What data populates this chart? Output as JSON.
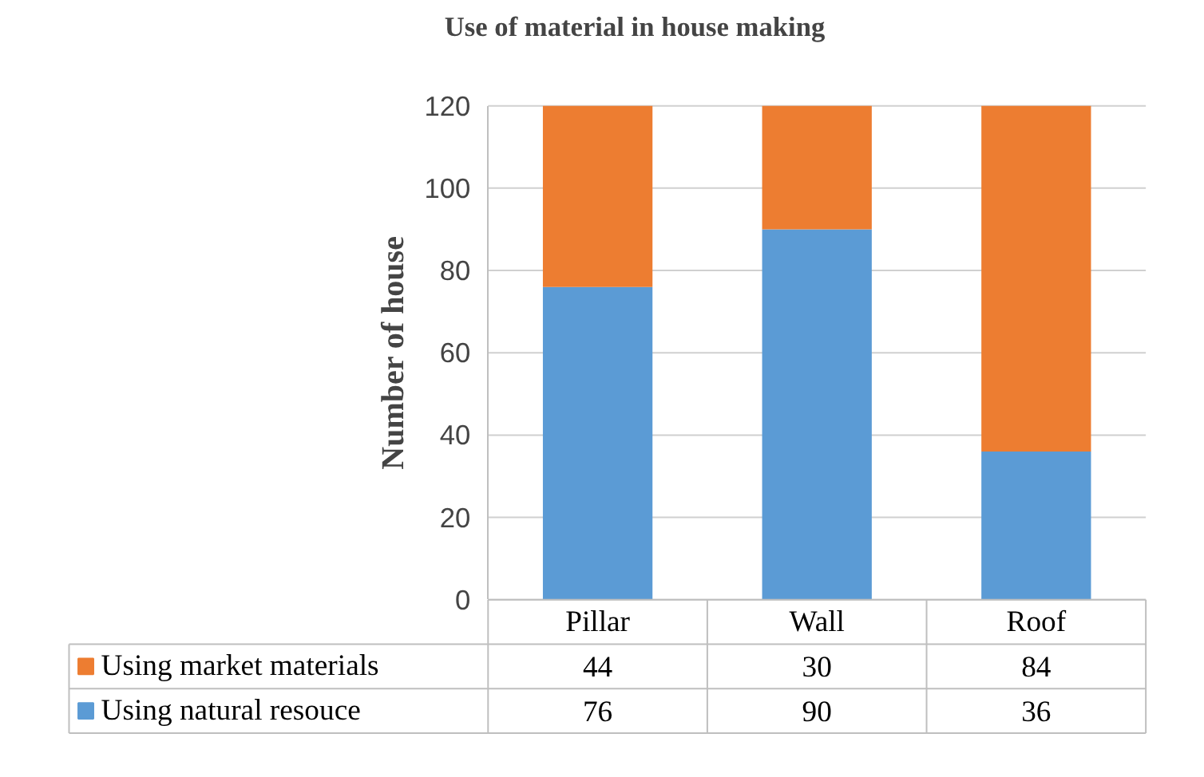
{
  "chart_data": {
    "type": "bar",
    "title": "Use of material in house making",
    "ylabel": "Number of house",
    "categories": [
      "Pillar",
      "Wall",
      "Roof"
    ],
    "series": [
      {
        "name": "Using natural resouce",
        "color": "#5b9bd5",
        "values": [
          76,
          90,
          36
        ]
      },
      {
        "name": "Using market materials",
        "color": "#ed7d31",
        "values": [
          44,
          30,
          84
        ]
      }
    ],
    "stacked": true,
    "ylim": [
      0,
      120
    ],
    "yticks": [
      0,
      20,
      40,
      60,
      80,
      100,
      120
    ],
    "grid": "y",
    "legend": "bottom",
    "data_labels": true
  }
}
